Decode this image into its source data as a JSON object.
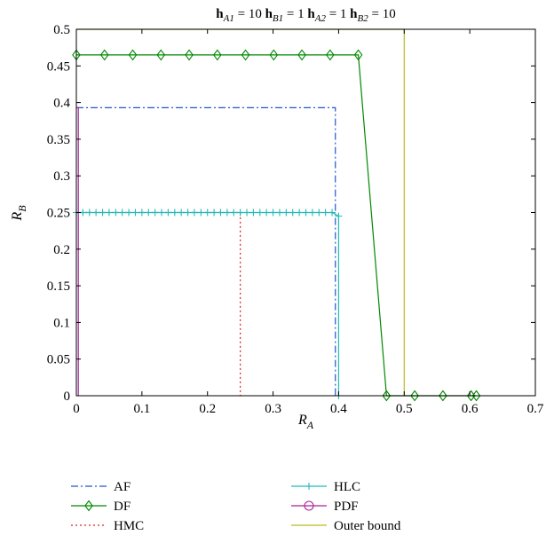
{
  "chart_data": {
    "type": "line",
    "title": "h_A1 = 10 h_B1 = 1 h_A2 = 1 h_B2 = 10",
    "title_parts": [
      {
        "base": "h",
        "sub": "A1",
        "rest": " = 10 "
      },
      {
        "base": "h",
        "sub": "B1",
        "rest": " = 1 "
      },
      {
        "base": "h",
        "sub": "A2",
        "rest": " = 1 "
      },
      {
        "base": "h",
        "sub": "B2",
        "rest": " = 10"
      }
    ],
    "xlabel": {
      "base": "R",
      "sub": "A"
    },
    "ylabel": {
      "base": "R",
      "sub": "B"
    },
    "xlim": [
      0,
      0.7
    ],
    "ylim": [
      0,
      0.5
    ],
    "xticks": [
      "0",
      "0.1",
      "0.2",
      "0.3",
      "0.4",
      "0.5",
      "0.6",
      "0.7"
    ],
    "yticks": [
      "0",
      "0.05",
      "0.1",
      "0.15",
      "0.2",
      "0.25",
      "0.3",
      "0.35",
      "0.4",
      "0.45",
      "0.5"
    ],
    "grid": false,
    "legend_position": "bottom",
    "series": [
      {
        "name": "AF",
        "color": "#2255cc",
        "dash": "8,3,2,3",
        "marker": "none",
        "x": [
          0,
          0.395,
          0.395
        ],
        "y": [
          0.393,
          0.393,
          0
        ]
      },
      {
        "name": "DF",
        "color": "#008800",
        "dash": "",
        "marker": "diamond",
        "x": [
          0,
          0.043,
          0.086,
          0.129,
          0.172,
          0.215,
          0.258,
          0.301,
          0.344,
          0.387,
          0.43,
          0.473,
          0.516,
          0.559,
          0.602,
          0.61
        ],
        "y": [
          0.465,
          0.465,
          0.465,
          0.465,
          0.465,
          0.465,
          0.465,
          0.465,
          0.465,
          0.465,
          0.465,
          0,
          0,
          0,
          0,
          0
        ]
      },
      {
        "name": "HMC",
        "color": "#dd2222",
        "dash": "2,3",
        "marker": "none",
        "x": [
          0,
          0.25,
          0.25
        ],
        "y": [
          0.25,
          0.25,
          0
        ]
      },
      {
        "name": "HLC",
        "color": "#22bbbb",
        "dash": "",
        "marker": "plus",
        "x": [
          0,
          0.01,
          0.02,
          0.03,
          0.04,
          0.05,
          0.06,
          0.07,
          0.08,
          0.09,
          0.1,
          0.11,
          0.12,
          0.13,
          0.14,
          0.15,
          0.16,
          0.17,
          0.18,
          0.19,
          0.2,
          0.21,
          0.22,
          0.23,
          0.24,
          0.25,
          0.26,
          0.27,
          0.28,
          0.29,
          0.3,
          0.31,
          0.32,
          0.33,
          0.34,
          0.35,
          0.36,
          0.37,
          0.38,
          0.39,
          0.4,
          0.4
        ],
        "y": [
          0.25,
          0.25,
          0.25,
          0.25,
          0.25,
          0.25,
          0.25,
          0.25,
          0.25,
          0.25,
          0.25,
          0.25,
          0.25,
          0.25,
          0.25,
          0.25,
          0.25,
          0.25,
          0.25,
          0.25,
          0.25,
          0.25,
          0.25,
          0.25,
          0.25,
          0.25,
          0.25,
          0.25,
          0.25,
          0.25,
          0.25,
          0.25,
          0.25,
          0.25,
          0.25,
          0.25,
          0.25,
          0.25,
          0.25,
          0.25,
          0.245,
          0
        ]
      },
      {
        "name": "PDF",
        "color": "#aa2299",
        "dash": "",
        "marker": "none",
        "x": [
          0,
          0.003,
          0.003
        ],
        "y": [
          0.393,
          0.393,
          0
        ]
      },
      {
        "name": "Outer bound",
        "color": "#bbbb22",
        "dash": "",
        "marker": "none",
        "x": [
          0,
          0.5,
          0.5
        ],
        "y": [
          0.5,
          0.5,
          0
        ]
      }
    ]
  }
}
